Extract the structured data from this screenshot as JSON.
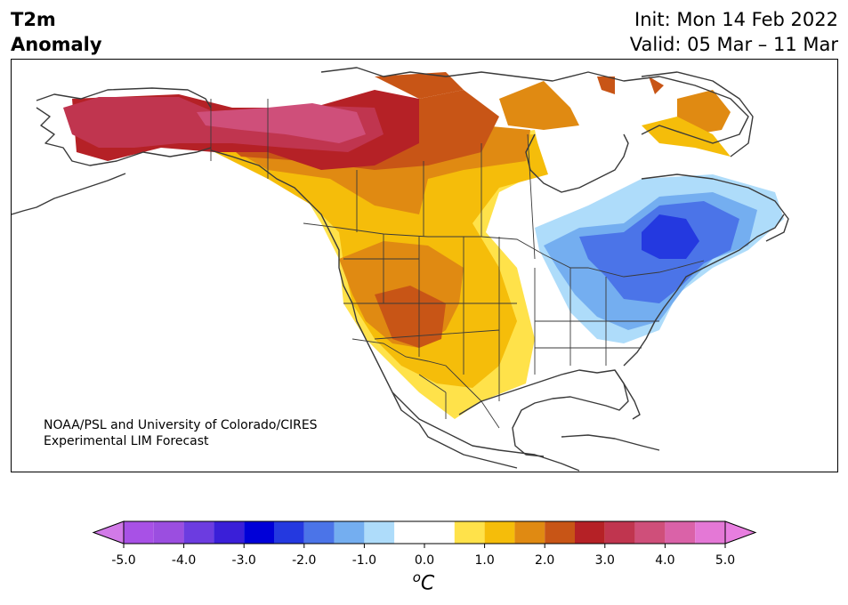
{
  "title": {
    "variable_line1": "T2m",
    "variable_line2": "Anomaly",
    "init": "Init: Mon 14 Feb 2022",
    "valid": "Valid: 05 Mar – 11 Mar"
  },
  "credit": {
    "line1": "NOAA/PSL and University of Colorado/CIRES",
    "line2": "Experimental LIM Forecast"
  },
  "colorbar": {
    "tick_labels": [
      "-5.0",
      "-4.0",
      "-3.0",
      "-2.0",
      "-1.0",
      "0.0",
      "1.0",
      "2.0",
      "3.0",
      "4.0",
      "5.0"
    ],
    "units_sup": "o",
    "units_main": "C",
    "bins": [
      {
        "lo": -5.0,
        "hi": -4.5,
        "color": "#a851e6"
      },
      {
        "lo": -4.5,
        "hi": -4.0,
        "color": "#9b4ee0"
      },
      {
        "lo": -4.0,
        "hi": -3.5,
        "color": "#6c3ce0"
      },
      {
        "lo": -3.5,
        "hi": -3.0,
        "color": "#3a1fd8"
      },
      {
        "lo": -3.0,
        "hi": -2.5,
        "color": "#0000d8"
      },
      {
        "lo": -2.5,
        "hi": -2.0,
        "color": "#2439e0"
      },
      {
        "lo": -2.0,
        "hi": -1.5,
        "color": "#4b74e8"
      },
      {
        "lo": -1.5,
        "hi": -1.0,
        "color": "#74aef0"
      },
      {
        "lo": -1.0,
        "hi": -0.5,
        "color": "#aedcfa"
      },
      {
        "lo": -0.5,
        "hi": 0.5,
        "color": "#ffffff"
      },
      {
        "lo": 0.5,
        "hi": 1.0,
        "color": "#ffe24a"
      },
      {
        "lo": 1.0,
        "hi": 1.5,
        "color": "#f5bd0a"
      },
      {
        "lo": 1.5,
        "hi": 2.0,
        "color": "#e08a12"
      },
      {
        "lo": 2.0,
        "hi": 2.5,
        "color": "#c85516"
      },
      {
        "lo": 2.5,
        "hi": 3.0,
        "color": "#b52126"
      },
      {
        "lo": 3.0,
        "hi": 3.5,
        "color": "#c0354f"
      },
      {
        "lo": 3.5,
        "hi": 4.0,
        "color": "#cf4f7a"
      },
      {
        "lo": 4.0,
        "hi": 4.5,
        "color": "#da62a8"
      },
      {
        "lo": 4.5,
        "hi": 5.0,
        "color": "#e478d6"
      }
    ],
    "under_color": "#d27ae8",
    "over_color": "#e87ee0"
  }
}
